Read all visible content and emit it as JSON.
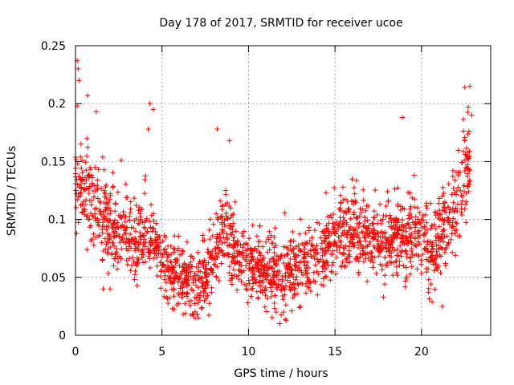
{
  "chart_data": {
    "type": "scatter",
    "title": "Day 178 of 2017, SRMTID for receiver ucoe",
    "xlabel": "GPS time / hours",
    "ylabel": "SRMTID / TECUs",
    "xlim": [
      0,
      24
    ],
    "ylim": [
      0,
      0.25
    ],
    "grid": true,
    "marker": "+",
    "xticks": [
      0,
      5,
      10,
      15,
      20
    ],
    "xtick_labels": [
      "0",
      "5",
      "10",
      "15",
      "20"
    ],
    "yticks": [
      0,
      0.05,
      0.1,
      0.15,
      0.2,
      0.25
    ],
    "ytick_labels": [
      "0",
      "0.05",
      "0.1",
      "0.15",
      "0.2",
      "0.25"
    ],
    "series": [
      {
        "name": "SRMTID",
        "color": "#ff0000",
        "trend_points": [
          [
            0.0,
            0.13
          ],
          [
            0.5,
            0.125
          ],
          [
            1.0,
            0.12
          ],
          [
            1.5,
            0.105
          ],
          [
            2.0,
            0.095
          ],
          [
            2.5,
            0.09
          ],
          [
            3.0,
            0.085
          ],
          [
            3.5,
            0.08
          ],
          [
            4.0,
            0.09
          ],
          [
            4.5,
            0.085
          ],
          [
            5.0,
            0.065
          ],
          [
            5.5,
            0.055
          ],
          [
            6.0,
            0.055
          ],
          [
            6.5,
            0.05
          ],
          [
            7.0,
            0.048
          ],
          [
            7.5,
            0.05
          ],
          [
            8.0,
            0.07
          ],
          [
            8.5,
            0.09
          ],
          [
            9.0,
            0.08
          ],
          [
            9.5,
            0.065
          ],
          [
            10.0,
            0.06
          ],
          [
            10.5,
            0.06
          ],
          [
            11.0,
            0.055
          ],
          [
            11.5,
            0.055
          ],
          [
            12.0,
            0.055
          ],
          [
            12.5,
            0.052
          ],
          [
            13.0,
            0.06
          ],
          [
            13.5,
            0.065
          ],
          [
            14.0,
            0.07
          ],
          [
            14.5,
            0.075
          ],
          [
            15.0,
            0.085
          ],
          [
            15.5,
            0.09
          ],
          [
            16.0,
            0.09
          ],
          [
            16.5,
            0.088
          ],
          [
            17.0,
            0.085
          ],
          [
            17.5,
            0.08
          ],
          [
            18.0,
            0.085
          ],
          [
            18.5,
            0.08
          ],
          [
            19.0,
            0.08
          ],
          [
            19.5,
            0.09
          ],
          [
            20.0,
            0.09
          ],
          [
            20.5,
            0.07
          ],
          [
            21.0,
            0.085
          ],
          [
            21.5,
            0.1
          ],
          [
            22.0,
            0.11
          ],
          [
            22.5,
            0.145
          ],
          [
            22.8,
            0.15
          ]
        ],
        "extra_points": [
          [
            0.1,
            0.237
          ],
          [
            0.15,
            0.23
          ],
          [
            0.2,
            0.22
          ],
          [
            0.1,
            0.198
          ],
          [
            0.7,
            0.207
          ],
          [
            1.2,
            0.193
          ],
          [
            4.3,
            0.2
          ],
          [
            4.5,
            0.195
          ],
          [
            4.2,
            0.178
          ],
          [
            8.2,
            0.178
          ],
          [
            8.9,
            0.168
          ],
          [
            18.9,
            0.188
          ],
          [
            22.5,
            0.214
          ],
          [
            22.8,
            0.215
          ],
          [
            22.7,
            0.197
          ],
          [
            22.9,
            0.19
          ],
          [
            11.8,
            0.01
          ],
          [
            11.6,
            0.02
          ],
          [
            7.1,
            0.015
          ],
          [
            6.8,
            0.018
          ],
          [
            5.6,
            0.023
          ],
          [
            13.0,
            0.025
          ],
          [
            21.2,
            0.025
          ],
          [
            17.8,
            0.033
          ],
          [
            2.0,
            0.04
          ],
          [
            1.6,
            0.04
          ]
        ],
        "points_per_hour": 90,
        "scatter_sd": 0.018
      }
    ]
  }
}
